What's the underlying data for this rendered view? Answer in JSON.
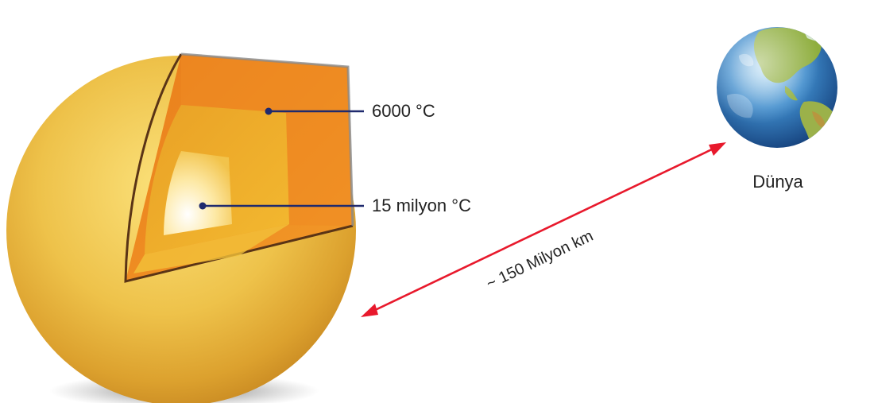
{
  "diagram": {
    "sun": {
      "surface_label": "6000 °C",
      "core_label": "15 milyon °C"
    },
    "earth": {
      "label": "Dünya"
    },
    "distance": {
      "label": "~ 150 Milyon km"
    },
    "colors": {
      "arrow": "#e8192c",
      "leader_line": "#1f2a6e",
      "sun_surface": "#e7b43a",
      "sun_layer_outer": "#ef8d22",
      "sun_layer_middle": "#f1a92a",
      "sun_core": "#fff4c8",
      "earth_ocean": "#2f73b8",
      "earth_land": "#8fae3e"
    }
  }
}
